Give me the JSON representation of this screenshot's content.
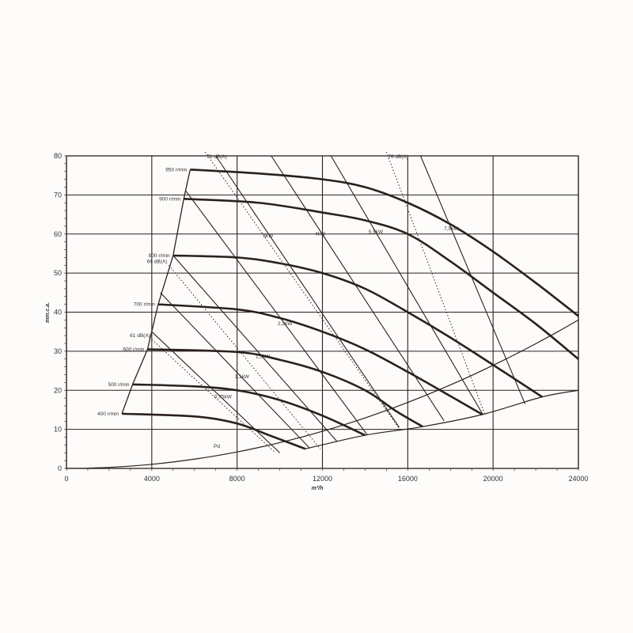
{
  "chart_data": {
    "type": "line",
    "xlabel": "m³/h",
    "ylabel": "mm.c.a.",
    "xlim": [
      0,
      24000
    ],
    "ylim": [
      0,
      80
    ],
    "xticks": [
      "0",
      "4000",
      "8000",
      "12000",
      "16000",
      "20000",
      "24000"
    ],
    "yticks": [
      "0",
      "10",
      "20",
      "30",
      "40",
      "50",
      "60",
      "70",
      "80"
    ],
    "grid": true,
    "colors": {
      "ink": "#2a2020",
      "paper": "#fdfcfa"
    },
    "speed_curves": [
      {
        "label": "950 r/min",
        "points": [
          [
            5800,
            76.5
          ],
          [
            9000,
            75.5
          ],
          [
            12000,
            74
          ],
          [
            14000,
            72
          ],
          [
            16000,
            68
          ],
          [
            18000,
            62.5
          ],
          [
            20000,
            55.5
          ],
          [
            22000,
            47.5
          ],
          [
            24000,
            39
          ]
        ]
      },
      {
        "label": "900 r/min",
        "points": [
          [
            5500,
            69
          ],
          [
            9000,
            68
          ],
          [
            12000,
            65.5
          ],
          [
            14000,
            63.5
          ],
          [
            16000,
            60
          ],
          [
            18000,
            53
          ],
          [
            20000,
            45
          ],
          [
            22000,
            37
          ],
          [
            24000,
            28
          ]
        ]
      },
      {
        "label": "800 r/min",
        "points": [
          [
            5000,
            54.5
          ],
          [
            8000,
            54
          ],
          [
            10000,
            52.5
          ],
          [
            12000,
            50
          ],
          [
            14000,
            46
          ],
          [
            16000,
            40
          ],
          [
            18000,
            33.5
          ],
          [
            20000,
            26.5
          ],
          [
            22300,
            18.3
          ]
        ]
      },
      {
        "label": "700 r/min",
        "points": [
          [
            4300,
            42
          ],
          [
            8000,
            40.7
          ],
          [
            10000,
            38.5
          ],
          [
            12000,
            35
          ],
          [
            14000,
            30.5
          ],
          [
            16000,
            24.7
          ],
          [
            18000,
            18.5
          ],
          [
            19500,
            13.8
          ]
        ]
      },
      {
        "label": "600 r/min",
        "points": [
          [
            3800,
            30.5
          ],
          [
            8000,
            29.8
          ],
          [
            10000,
            27.8
          ],
          [
            12000,
            24.7
          ],
          [
            14000,
            20
          ],
          [
            15500,
            14.5
          ],
          [
            16700,
            10.7
          ]
        ]
      },
      {
        "label": "500 r/min",
        "points": [
          [
            3100,
            21.5
          ],
          [
            6000,
            21
          ],
          [
            8000,
            20
          ],
          [
            10000,
            17.5
          ],
          [
            12000,
            13.5
          ],
          [
            14000,
            8.5
          ]
        ]
      },
      {
        "label": "400 r/min",
        "points": [
          [
            2600,
            14
          ],
          [
            6000,
            13.3
          ],
          [
            8000,
            11.5
          ],
          [
            9500,
            8.5
          ],
          [
            11200,
            5
          ]
        ]
      }
    ],
    "power_lines": [
      {
        "label": "0,75kW",
        "points": [
          [
            4000,
            35
          ],
          [
            10000,
            4
          ]
        ]
      },
      {
        "label": "1,1kW",
        "points": [
          [
            4400,
            45
          ],
          [
            11400,
            5.2
          ]
        ]
      },
      {
        "label": "1,5kW",
        "points": [
          [
            5000,
            54.5
          ],
          [
            12700,
            6.8
          ]
        ]
      },
      {
        "label": "2,2kW",
        "points": [
          [
            5600,
            71
          ],
          [
            14100,
            8.6
          ]
        ]
      },
      {
        "label": "3kW",
        "points": [
          [
            7000,
            80
          ],
          [
            15600,
            10.5
          ]
        ]
      },
      {
        "label": "4kW",
        "points": [
          [
            9600,
            80
          ],
          [
            17700,
            12.2
          ]
        ]
      },
      {
        "label": "5,5kW",
        "points": [
          [
            12400,
            80
          ],
          [
            19500,
            14
          ]
        ]
      },
      {
        "label": "7,5kW",
        "points": [
          [
            16600,
            80
          ],
          [
            21500,
            16.5
          ]
        ]
      }
    ],
    "noise_lines": [
      {
        "label": "61 dB(A)",
        "points": [
          [
            4000,
            33
          ],
          [
            9800,
            4
          ]
        ]
      },
      {
        "label": "66 dB(A)",
        "points": [
          [
            4800,
            52
          ],
          [
            11900,
            5
          ]
        ]
      },
      {
        "label": "71 dB(A)",
        "points": [
          [
            6500,
            81
          ],
          [
            15600,
            10.2
          ]
        ]
      },
      {
        "label": "76 dB(A)",
        "points": [
          [
            15000,
            81
          ],
          [
            19600,
            14
          ]
        ]
      }
    ],
    "pd_curve": {
      "label": "Pd",
      "max_at_24000": 38
    },
    "lower_limit": [
      [
        11200,
        5
      ],
      [
        14000,
        8.5
      ],
      [
        16700,
        10.7
      ],
      [
        19500,
        13.8
      ],
      [
        22300,
        18.3
      ],
      [
        24000,
        20
      ]
    ],
    "left_limit": [
      [
        2600,
        14
      ],
      [
        3100,
        21.5
      ],
      [
        3800,
        30.5
      ],
      [
        4300,
        42
      ],
      [
        5000,
        54.5
      ],
      [
        5500,
        69
      ],
      [
        5800,
        76.5
      ]
    ]
  }
}
